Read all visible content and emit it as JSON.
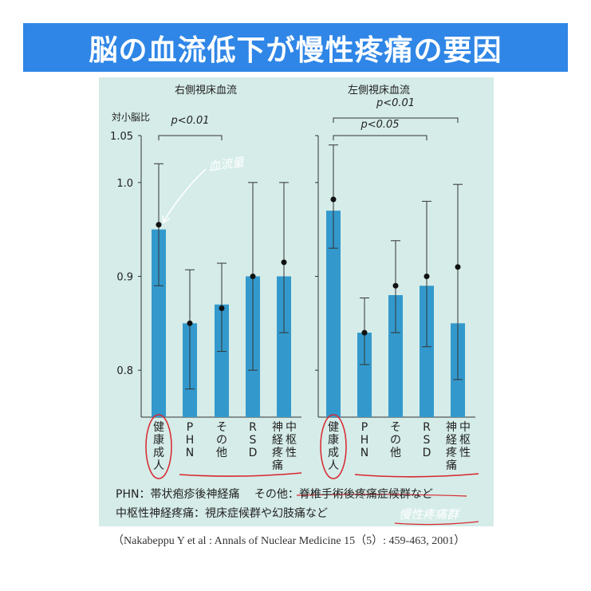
{
  "banner_title": "脳の血流低下が慢性疼痛の要因",
  "footnotes": {
    "line1": "PHN：帯状疱疹後神経痛　 その他：脊椎手術後疼痛症候群など",
    "line2": "中枢性神経疼痛：視床症候群や幻肢痛など"
  },
  "handwritten": {
    "blood_flow": "血流量",
    "chronic_pain": "慢性疼痛群"
  },
  "citation": "（Nakabeppu Y et al : Annals of Nuclear Medicine 15（5）: 459-463, 2001）",
  "colors": {
    "bar": "#3399cc",
    "panel": "#d5ece8",
    "banner": "#2f86e6",
    "annotation": "#d8262e"
  },
  "chart_data": [
    {
      "type": "bar",
      "title": "右側視床血流",
      "ylabel": "対小脳比",
      "ylim": [
        0.75,
        1.05
      ],
      "yticks": [
        "0.8",
        "0.9",
        "1.0",
        "1.05"
      ],
      "categories": [
        "健康成人",
        "PHN",
        "その他",
        "RSD",
        "神経疼痛中枢性"
      ],
      "category_labels": [
        [
          "健康成人"
        ],
        [
          "PHN"
        ],
        [
          "その他"
        ],
        [
          "RSD"
        ],
        [
          "神経疼痛",
          "中枢性"
        ]
      ],
      "values": [
        0.95,
        0.85,
        0.87,
        0.9,
        0.9
      ],
      "points": [
        0.955,
        0.85,
        0.866,
        0.9,
        0.915
      ],
      "err_hi": [
        1.02,
        0.907,
        0.914,
        1.0,
        1.0
      ],
      "err_lo": [
        0.89,
        0.78,
        0.82,
        0.8,
        0.84
      ],
      "significance": [
        {
          "from": 0,
          "to": 2,
          "label": "p<0.01"
        }
      ]
    },
    {
      "type": "bar",
      "title": "左側視床血流",
      "ylim": [
        0.75,
        1.05
      ],
      "categories": [
        "健康成人",
        "PHN",
        "その他",
        "RSD",
        "神経疼痛中枢性"
      ],
      "category_labels": [
        [
          "健康成人"
        ],
        [
          "PHN"
        ],
        [
          "その他"
        ],
        [
          "RSD"
        ],
        [
          "神経疼痛",
          "中枢性"
        ]
      ],
      "values": [
        0.97,
        0.84,
        0.88,
        0.89,
        0.85
      ],
      "points": [
        0.982,
        0.84,
        0.89,
        0.9,
        0.91
      ],
      "err_hi": [
        1.04,
        0.877,
        0.938,
        0.98,
        0.998
      ],
      "err_lo": [
        0.93,
        0.806,
        0.84,
        0.825,
        0.79
      ],
      "significance": [
        {
          "from": 0,
          "to": 4,
          "label": "p<0.01"
        },
        {
          "from": 0,
          "to": 3,
          "label": "p<0.05"
        }
      ]
    }
  ]
}
